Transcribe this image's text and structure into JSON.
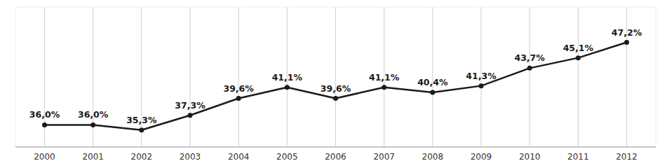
{
  "chart_data": {
    "type": "line",
    "x": [
      2000,
      2001,
      2002,
      2003,
      2004,
      2005,
      2006,
      2007,
      2008,
      2009,
      2010,
      2011,
      2012
    ],
    "values": [
      36.0,
      36.0,
      35.3,
      37.3,
      39.6,
      41.1,
      39.6,
      41.1,
      40.4,
      41.3,
      43.7,
      45.1,
      47.2
    ],
    "value_labels": [
      "36,0%",
      "36,0%",
      "35,3%",
      "37,3%",
      "39,6%",
      "41,1%",
      "39,6%",
      "41,1%",
      "40,4%",
      "41,3%",
      "43,7%",
      "45,1%",
      "47,2%"
    ],
    "color": "#1a1a1a",
    "marker": "circle",
    "xlim": [
      1999.4,
      2012.6
    ],
    "xticks": [
      2000,
      2001,
      2002,
      2003,
      2004,
      2005,
      2006,
      2007,
      2008,
      2009,
      2010,
      2011,
      2012
    ],
    "ylim": [
      33,
      52
    ],
    "grid": true,
    "data_labels": true,
    "tick_labels": "x"
  }
}
